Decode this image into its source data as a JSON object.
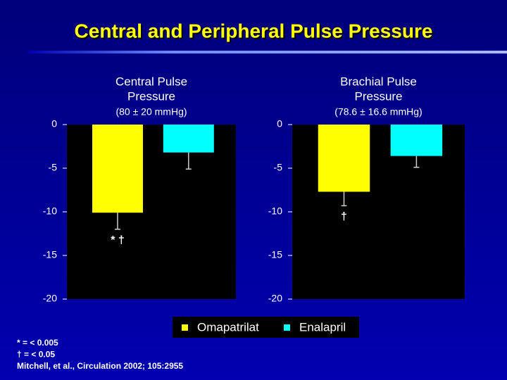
{
  "title": "Central and Peripheral Pulse Pressure",
  "legend": [
    {
      "name": "Omapatrilat",
      "color": "#ffff00"
    },
    {
      "name": "Enalapril",
      "color": "#00ffff"
    }
  ],
  "chart_data": [
    {
      "type": "bar",
      "title": [
        "Central Pulse",
        "Pressure"
      ],
      "subtitle": "(80 ± 20 mmHg)",
      "values": [
        -10.1,
        -3.2
      ],
      "errors": [
        1.9,
        1.9
      ],
      "value_annotations": [
        "* †",
        null
      ],
      "ylim": [
        -20,
        0
      ],
      "yticks": [
        0,
        -5,
        -10,
        -15,
        -20
      ]
    },
    {
      "type": "bar",
      "title": [
        "Brachial Pulse",
        "Pressure"
      ],
      "subtitle": "(78.6 ± 16.6 mmHg)",
      "values": [
        -7.7,
        -3.6
      ],
      "errors": [
        1.6,
        1.3
      ],
      "value_annotations": [
        "†",
        null
      ],
      "ylim": [
        -20,
        0
      ],
      "yticks": [
        0,
        -5,
        -10,
        -15,
        -20
      ]
    }
  ],
  "footnotes": [
    "* = < 0.005",
    "† = < 0.05",
    "Mitchell, et al., Circulation 2002; 105:2955"
  ]
}
